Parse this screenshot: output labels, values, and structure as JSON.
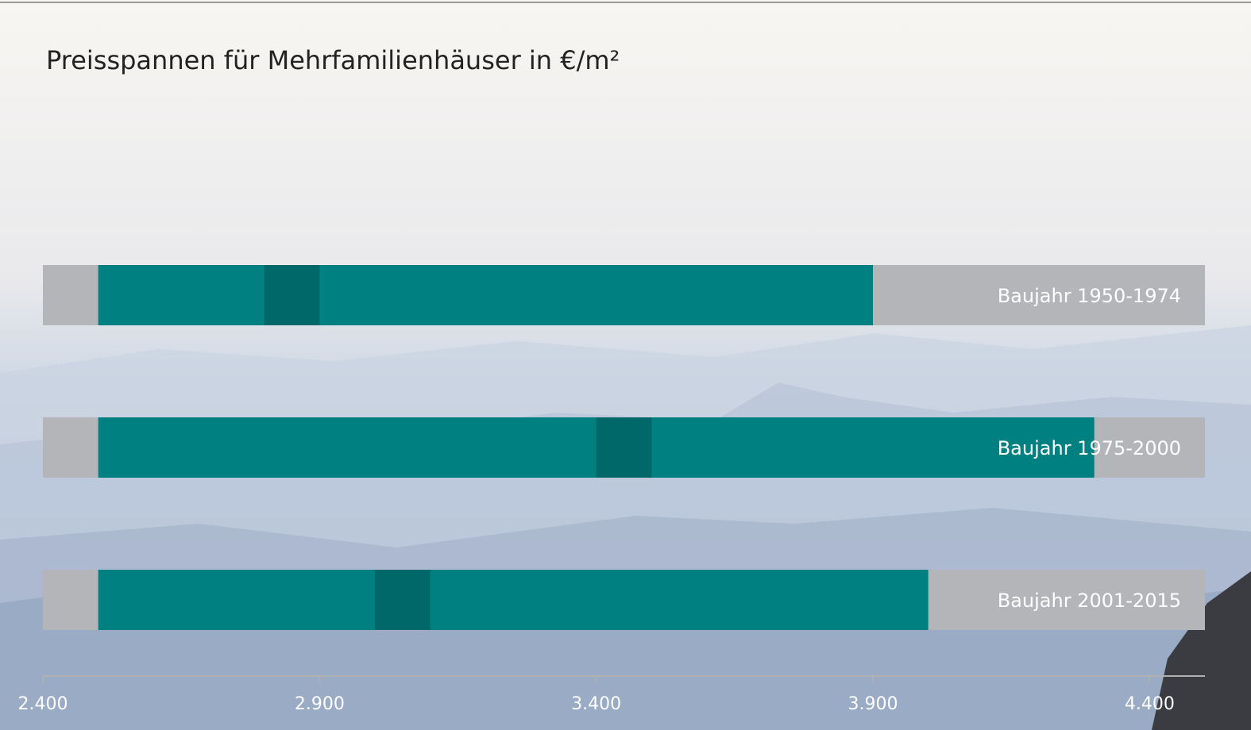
{
  "chart_data": {
    "type": "range_bar",
    "title": "Preisspannen für Mehrfamilienhäuser in €/m²",
    "categories": [
      "Baujahr 1950-1974",
      "Baujahr 1975-2000",
      "Baujahr 2001-2015"
    ],
    "ranges": [
      {
        "low": 2500,
        "mid_low": 2800,
        "mid_high": 2900,
        "high": 3900
      },
      {
        "low": 2500,
        "mid_low": 3400,
        "mid_high": 3500,
        "high": 4300
      },
      {
        "low": 2500,
        "mid_low": 3000,
        "mid_high": 3100,
        "high": 4000
      }
    ],
    "colors": {
      "range": "#008080",
      "mid": "#006868",
      "track": "#b4b5b8"
    },
    "xlim": [
      2400,
      4500
    ],
    "xticks": [
      {
        "value": 2400,
        "label": "2.400"
      },
      {
        "value": 2900,
        "label": "2.900"
      },
      {
        "value": 3400,
        "label": "3.400"
      },
      {
        "value": 3900,
        "label": "3.900"
      },
      {
        "value": 4400,
        "label": "4.400"
      }
    ]
  }
}
